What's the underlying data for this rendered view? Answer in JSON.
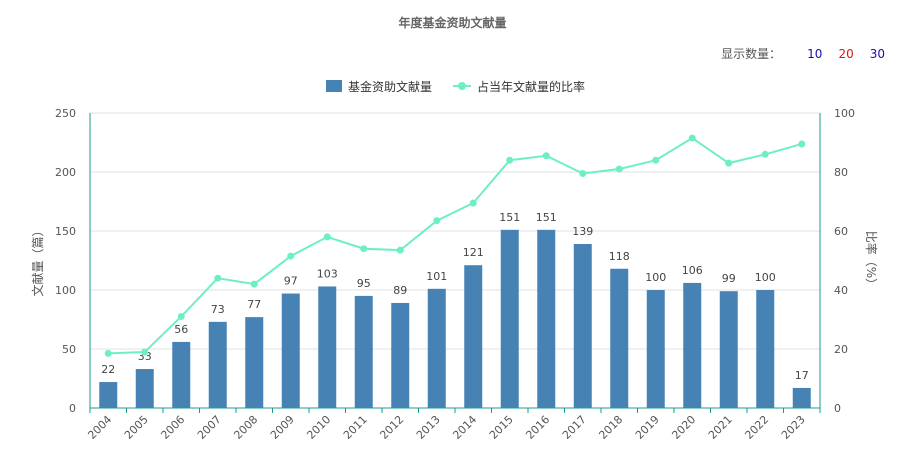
{
  "title": "年度基金资助文献量",
  "display_count": {
    "label": "显示数量：",
    "options": [
      {
        "value": "10",
        "color": "#1a0dab"
      },
      {
        "value": "20",
        "color": "#d9161c"
      },
      {
        "value": "30",
        "color": "#1a0dab"
      }
    ]
  },
  "colors": {
    "bar": "#4682b4",
    "line": "#6cf0c2"
  },
  "chart_data": {
    "type": "bar",
    "categories": [
      "2004",
      "2005",
      "2006",
      "2007",
      "2008",
      "2009",
      "2010",
      "2011",
      "2012",
      "2013",
      "2014",
      "2015",
      "2016",
      "2017",
      "2018",
      "2019",
      "2020",
      "2021",
      "2022",
      "2023"
    ],
    "series": [
      {
        "name": "基金资助文献量",
        "type": "bar",
        "axis": "left",
        "values": [
          22,
          33,
          56,
          73,
          77,
          97,
          103,
          95,
          89,
          101,
          121,
          151,
          151,
          139,
          118,
          100,
          106,
          99,
          100,
          17
        ]
      },
      {
        "name": "占当年文献量的比率",
        "type": "line",
        "axis": "right",
        "values": [
          18.5,
          19,
          31,
          44,
          42,
          51.5,
          58,
          54,
          53.5,
          63.5,
          69.5,
          84,
          85.5,
          79.5,
          81,
          84,
          91.5,
          83,
          86,
          89.5
        ]
      }
    ],
    "ylabel": "文献量（篇）",
    "y2label": "比率（%）",
    "ylim": [
      0,
      250
    ],
    "y_ticks": [
      "0",
      "50",
      "100",
      "150",
      "200",
      "250"
    ],
    "y2lim": [
      0,
      100
    ],
    "y2_ticks": [
      "0",
      "20",
      "40",
      "60",
      "80",
      "100"
    ],
    "grid": true,
    "legend": "top-center",
    "data_labels": true
  }
}
